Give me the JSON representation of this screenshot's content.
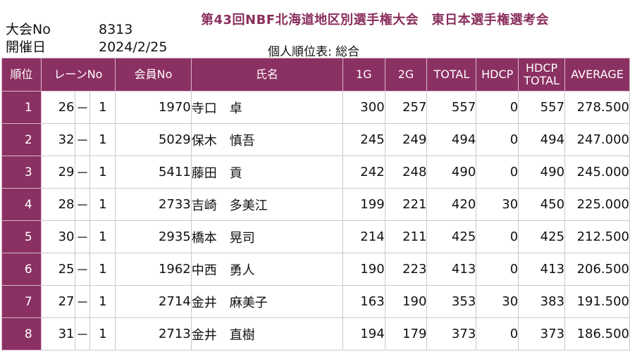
{
  "header": {
    "event_no_label": "大会No",
    "event_no": "8313",
    "date_label": "開催日",
    "date": "2024/2/25",
    "title": "第43回NBF北海道地区別選手権大会　東日本選手権選考会",
    "subtitle": "個人順位表: 総合"
  },
  "columns": {
    "rank": "順位",
    "lane": "レーンNo",
    "member": "会員No",
    "name": "氏名",
    "g1": "1G",
    "g2": "2G",
    "total": "TOTAL",
    "hdcp": "HDCP",
    "hdcp_total_1": "HDCP",
    "hdcp_total_2": "TOTAL",
    "average": "AVERAGE"
  },
  "rows": [
    {
      "rank": "1",
      "lane": "26",
      "dash": "－",
      "box": "1",
      "member": "1970",
      "name": "寺口　卓",
      "g1": "300",
      "g2": "257",
      "total": "557",
      "hdcp": "0",
      "hdcp_total": "557",
      "average": "278.500"
    },
    {
      "rank": "2",
      "lane": "32",
      "dash": "－",
      "box": "1",
      "member": "5029",
      "name": "保木　慎吾",
      "g1": "245",
      "g2": "249",
      "total": "494",
      "hdcp": "0",
      "hdcp_total": "494",
      "average": "247.000"
    },
    {
      "rank": "3",
      "lane": "29",
      "dash": "－",
      "box": "1",
      "member": "5411",
      "name": "藤田　貢",
      "g1": "242",
      "g2": "248",
      "total": "490",
      "hdcp": "0",
      "hdcp_total": "490",
      "average": "245.000"
    },
    {
      "rank": "4",
      "lane": "28",
      "dash": "－",
      "box": "1",
      "member": "2733",
      "name": "吉崎　多美江",
      "g1": "199",
      "g2": "221",
      "total": "420",
      "hdcp": "30",
      "hdcp_total": "450",
      "average": "225.000"
    },
    {
      "rank": "5",
      "lane": "30",
      "dash": "－",
      "box": "1",
      "member": "2935",
      "name": "橋本　晃司",
      "g1": "214",
      "g2": "211",
      "total": "425",
      "hdcp": "0",
      "hdcp_total": "425",
      "average": "212.500"
    },
    {
      "rank": "6",
      "lane": "25",
      "dash": "－",
      "box": "1",
      "member": "1962",
      "name": "中西　勇人",
      "g1": "190",
      "g2": "223",
      "total": "413",
      "hdcp": "0",
      "hdcp_total": "413",
      "average": "206.500"
    },
    {
      "rank": "7",
      "lane": "27",
      "dash": "－",
      "box": "1",
      "member": "2714",
      "name": "金井　麻美子",
      "g1": "163",
      "g2": "190",
      "total": "353",
      "hdcp": "30",
      "hdcp_total": "383",
      "average": "191.500"
    },
    {
      "rank": "8",
      "lane": "31",
      "dash": "－",
      "box": "1",
      "member": "2713",
      "name": "金井　直樹",
      "g1": "194",
      "g2": "179",
      "total": "373",
      "hdcp": "0",
      "hdcp_total": "373",
      "average": "186.500"
    }
  ],
  "colors": {
    "header_bg": "#8b3062",
    "title_color": "#8a2e5c"
  }
}
